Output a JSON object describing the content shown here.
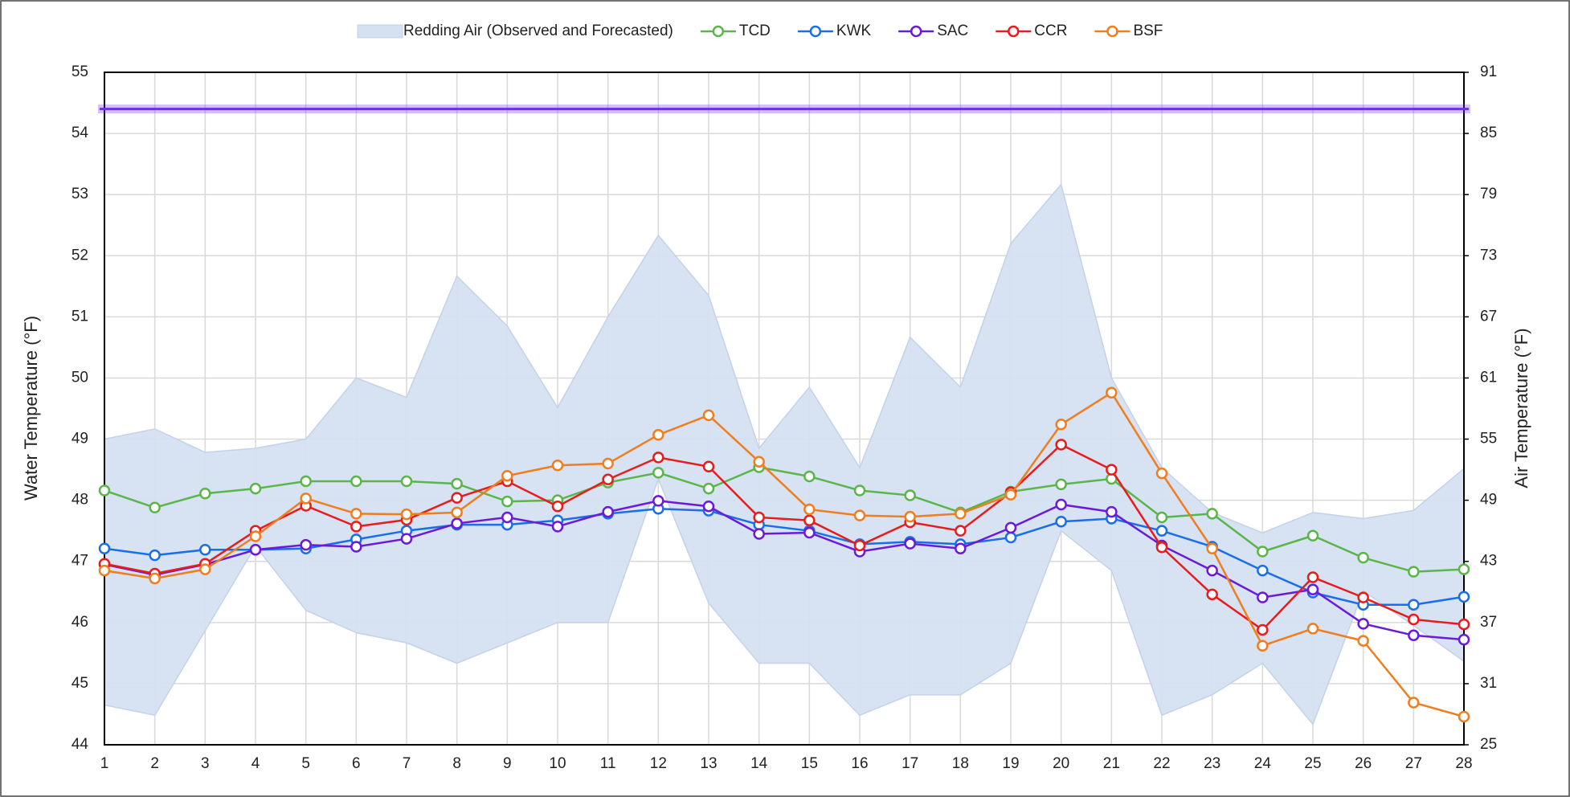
{
  "chart_data": {
    "type": "line",
    "y_label": "Water Temperature (°F)",
    "y2_label": "Air Temperature (°F)",
    "x": [
      1,
      2,
      3,
      4,
      5,
      6,
      7,
      8,
      9,
      10,
      11,
      12,
      13,
      14,
      15,
      16,
      17,
      18,
      19,
      20,
      21,
      22,
      23,
      24,
      25,
      26,
      27,
      28
    ],
    "xlim": [
      1,
      28
    ],
    "xticks": [
      1,
      2,
      3,
      4,
      5,
      6,
      7,
      8,
      9,
      10,
      11,
      12,
      13,
      14,
      15,
      16,
      17,
      18,
      19,
      20,
      21,
      22,
      23,
      24,
      25,
      26,
      27,
      28
    ],
    "ylim": [
      44,
      55
    ],
    "yticks": [
      44,
      45,
      46,
      47,
      48,
      49,
      50,
      51,
      52,
      53,
      54,
      55
    ],
    "y2lim": [
      25,
      91
    ],
    "y2ticks": [
      25,
      31,
      37,
      43,
      49,
      55,
      61,
      67,
      73,
      79,
      85,
      91
    ],
    "grid": true,
    "legend": "top",
    "area": {
      "name": "Redding Air (Observed and Forecasted)",
      "color": "#d5e0f1",
      "axis": "y2",
      "upper": [
        55.0,
        56.0,
        53.7,
        54.1,
        55.0,
        61.0,
        59.1,
        71.0,
        66.1,
        58.1,
        67.0,
        75.0,
        69.1,
        54.1,
        60.1,
        52.2,
        65.0,
        60.1,
        74.2,
        80.0,
        61.0,
        52.2,
        47.8,
        45.8,
        47.8,
        47.2,
        48.0,
        52.1
      ],
      "lower": [
        28.9,
        27.9,
        36.2,
        44.5,
        38.2,
        36.0,
        35.0,
        33.0,
        35.0,
        37.0,
        37.0,
        51.1,
        38.9,
        33.0,
        33.0,
        27.9,
        29.9,
        29.9,
        33.0,
        46.0,
        42.1,
        27.9,
        29.9,
        33.0,
        27.0,
        40.1,
        36.7,
        33.2
      ]
    },
    "reference_line": {
      "value": 54.4,
      "color": "#7030e0"
    },
    "series": [
      {
        "name": "TCD",
        "color": "#5ab64a",
        "values": [
          48.16,
          47.88,
          48.11,
          48.19,
          48.31,
          48.31,
          48.31,
          48.27,
          47.98,
          48.0,
          48.29,
          48.45,
          48.19,
          48.54,
          48.39,
          48.16,
          48.08,
          47.8,
          48.14,
          48.26,
          48.35,
          47.72,
          47.78,
          47.16,
          47.42,
          47.06,
          46.83,
          46.87
        ]
      },
      {
        "name": "KWK",
        "color": "#1a6ee8",
        "values": [
          47.21,
          47.1,
          47.19,
          47.19,
          47.21,
          47.36,
          47.5,
          47.6,
          47.6,
          47.67,
          47.78,
          47.86,
          47.83,
          47.6,
          47.5,
          47.28,
          47.32,
          47.28,
          47.39,
          47.65,
          47.7,
          47.5,
          47.24,
          46.85,
          46.49,
          46.29,
          46.29,
          46.42
        ]
      },
      {
        "name": "SAC",
        "color": "#6a1ad8",
        "values": [
          46.95,
          46.78,
          46.95,
          47.19,
          47.27,
          47.24,
          47.37,
          47.62,
          47.72,
          47.57,
          47.81,
          47.99,
          47.9,
          47.45,
          47.47,
          47.16,
          47.29,
          47.21,
          47.55,
          47.93,
          47.81,
          47.26,
          46.85,
          46.41,
          46.54,
          45.98,
          45.79,
          45.72
        ]
      },
      {
        "name": "CCR",
        "color": "#e81c1c",
        "values": [
          46.96,
          46.8,
          46.96,
          47.5,
          47.91,
          47.57,
          47.68,
          48.04,
          48.31,
          47.9,
          48.34,
          48.7,
          48.55,
          47.72,
          47.67,
          47.26,
          47.64,
          47.5,
          48.13,
          48.91,
          48.5,
          47.23,
          46.46,
          45.88,
          46.74,
          46.41,
          46.05,
          45.97
        ]
      },
      {
        "name": "BSF",
        "color": "#f07d1e",
        "values": [
          46.85,
          46.72,
          46.87,
          47.41,
          48.03,
          47.78,
          47.77,
          47.8,
          48.4,
          48.57,
          48.6,
          49.07,
          49.39,
          48.63,
          47.85,
          47.75,
          47.73,
          47.78,
          48.09,
          49.24,
          49.76,
          48.44,
          47.21,
          45.62,
          45.9,
          45.7,
          44.69,
          44.46
        ]
      }
    ]
  }
}
